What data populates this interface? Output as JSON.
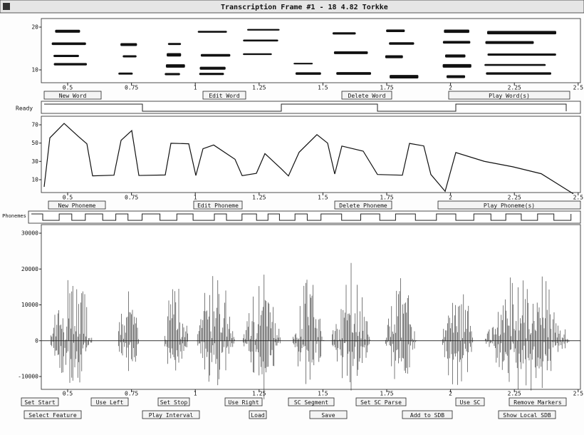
{
  "window_title": "Transcription Frame #1 - 18 4.82 Torkke",
  "time_axis": [
    "0.5",
    "0.75",
    "1",
    "1.25",
    "1.5",
    "1.75",
    "2",
    "2.25",
    "2.5"
  ],
  "spectrogram": {
    "y_labels": [
      "20",
      "10"
    ]
  },
  "word_tier": {
    "status": "Ready",
    "buttons": [
      "New Word",
      "Edit Word",
      "Delete Word",
      "Play Word(s)"
    ]
  },
  "pitch": {
    "y_labels": [
      "70",
      "50",
      "30",
      "10"
    ]
  },
  "phoneme_tier": {
    "label": "Phonemes",
    "buttons": [
      "New Phoneme",
      "Edit Phoneme",
      "Delete Phoneme",
      "Play Phoneme(s)"
    ]
  },
  "waveform": {
    "y_labels": [
      "30000",
      "20000",
      "10000",
      "0",
      "-10000"
    ]
  },
  "bottom_buttons": {
    "row1": [
      "Set Start",
      "Use Left",
      "Set Stop",
      "Use Right",
      "SC Segment",
      "Set SC Parse",
      "Use SC",
      "Remove Markers"
    ],
    "row2": [
      "Select Feature",
      "Play Interval",
      "Load",
      "Save",
      "Add to SDB",
      "Show Local SDB"
    ]
  }
}
